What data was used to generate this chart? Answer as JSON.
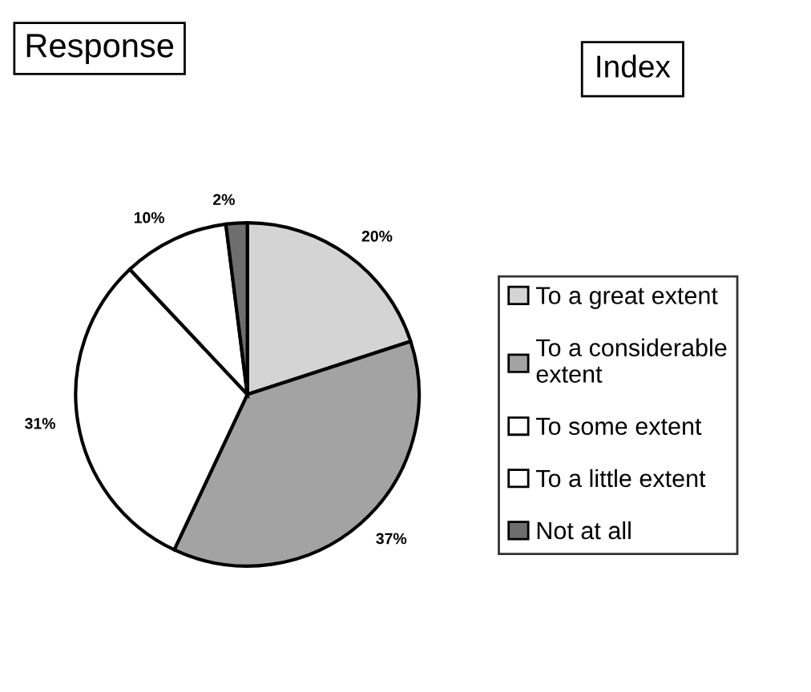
{
  "chart_data": {
    "type": "pie",
    "title": "Response",
    "legend_title": "Index",
    "categories": [
      "To a great extent",
      "To a considerable extent",
      "To some extent",
      "To a little extent",
      "Not at all"
    ],
    "values": [
      20,
      37,
      31,
      10,
      2
    ],
    "colors": [
      "#d4d4d4",
      "#a3a3a3",
      "#ffffff",
      "#ffffff",
      "#6e6e6e"
    ],
    "value_labels": [
      "20%",
      "37%",
      "31%",
      "10%",
      "2%"
    ],
    "legend": "right"
  }
}
